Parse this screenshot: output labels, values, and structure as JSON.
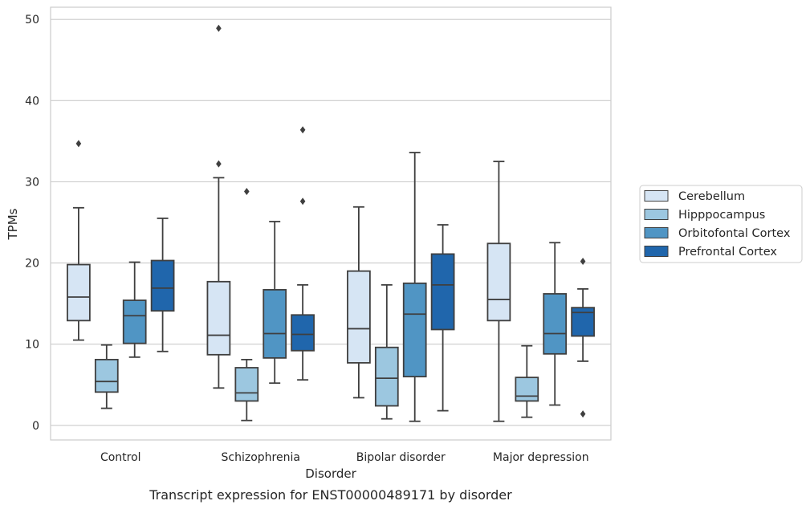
{
  "caption": "Transcript expression for ENST00000489171 by disorder",
  "chart_data": {
    "type": "box",
    "xlabel": "Disorder",
    "ylabel": "TPMs",
    "ylim": [
      -1.8,
      51.5
    ],
    "yticks": [
      0,
      10,
      20,
      30,
      40,
      50
    ],
    "grid": "horizontal",
    "legend_position": "right",
    "categories": [
      "Control",
      "Schizophrenia",
      "Bipolar disorder",
      "Major depression"
    ],
    "series": [
      {
        "name": "Cerebellum",
        "color": "#d6e5f4",
        "boxes": [
          {
            "whisker_low": 10.5,
            "q1": 12.9,
            "median": 15.8,
            "q3": 19.8,
            "whisker_high": 26.8,
            "outliers": [
              34.7
            ]
          },
          {
            "whisker_low": 4.6,
            "q1": 8.7,
            "median": 11.1,
            "q3": 17.7,
            "whisker_high": 30.5,
            "outliers": [
              32.2,
              48.9
            ]
          },
          {
            "whisker_low": 3.4,
            "q1": 7.7,
            "median": 11.9,
            "q3": 19.0,
            "whisker_high": 26.9,
            "outliers": []
          },
          {
            "whisker_low": 0.5,
            "q1": 12.9,
            "median": 15.5,
            "q3": 22.4,
            "whisker_high": 32.5,
            "outliers": []
          }
        ]
      },
      {
        "name": "Hipppocampus",
        "color": "#9cc7e0",
        "boxes": [
          {
            "whisker_low": 2.1,
            "q1": 4.1,
            "median": 5.4,
            "q3": 8.1,
            "whisker_high": 9.9,
            "outliers": []
          },
          {
            "whisker_low": 0.6,
            "q1": 3.0,
            "median": 4.0,
            "q3": 7.1,
            "whisker_high": 8.1,
            "outliers": [
              28.8
            ]
          },
          {
            "whisker_low": 0.8,
            "q1": 2.4,
            "median": 5.8,
            "q3": 9.6,
            "whisker_high": 17.3,
            "outliers": []
          },
          {
            "whisker_low": 1.0,
            "q1": 3.0,
            "median": 3.6,
            "q3": 5.9,
            "whisker_high": 9.8,
            "outliers": []
          }
        ]
      },
      {
        "name": "Orbitofontal Cortex",
        "color": "#5095c4",
        "boxes": [
          {
            "whisker_low": 8.4,
            "q1": 10.1,
            "median": 13.5,
            "q3": 15.4,
            "whisker_high": 20.1,
            "outliers": []
          },
          {
            "whisker_low": 5.2,
            "q1": 8.3,
            "median": 11.3,
            "q3": 16.7,
            "whisker_high": 25.1,
            "outliers": []
          },
          {
            "whisker_low": 0.5,
            "q1": 6.0,
            "median": 13.7,
            "q3": 17.5,
            "whisker_high": 33.6,
            "outliers": []
          },
          {
            "whisker_low": 2.5,
            "q1": 8.8,
            "median": 11.3,
            "q3": 16.2,
            "whisker_high": 22.5,
            "outliers": []
          }
        ]
      },
      {
        "name": "Prefrontal Cortex",
        "color": "#2066ac",
        "boxes": [
          {
            "whisker_low": 9.1,
            "q1": 14.1,
            "median": 16.9,
            "q3": 20.3,
            "whisker_high": 25.5,
            "outliers": []
          },
          {
            "whisker_low": 5.6,
            "q1": 9.2,
            "median": 11.2,
            "q3": 13.6,
            "whisker_high": 17.3,
            "outliers": [
              27.6,
              36.4
            ]
          },
          {
            "whisker_low": 1.8,
            "q1": 11.8,
            "median": 17.3,
            "q3": 21.1,
            "whisker_high": 24.7,
            "outliers": []
          },
          {
            "whisker_low": 7.9,
            "q1": 11.0,
            "median": 13.9,
            "q3": 14.5,
            "whisker_high": 16.8,
            "outliers": [
              1.4,
              20.2
            ]
          }
        ]
      }
    ]
  }
}
